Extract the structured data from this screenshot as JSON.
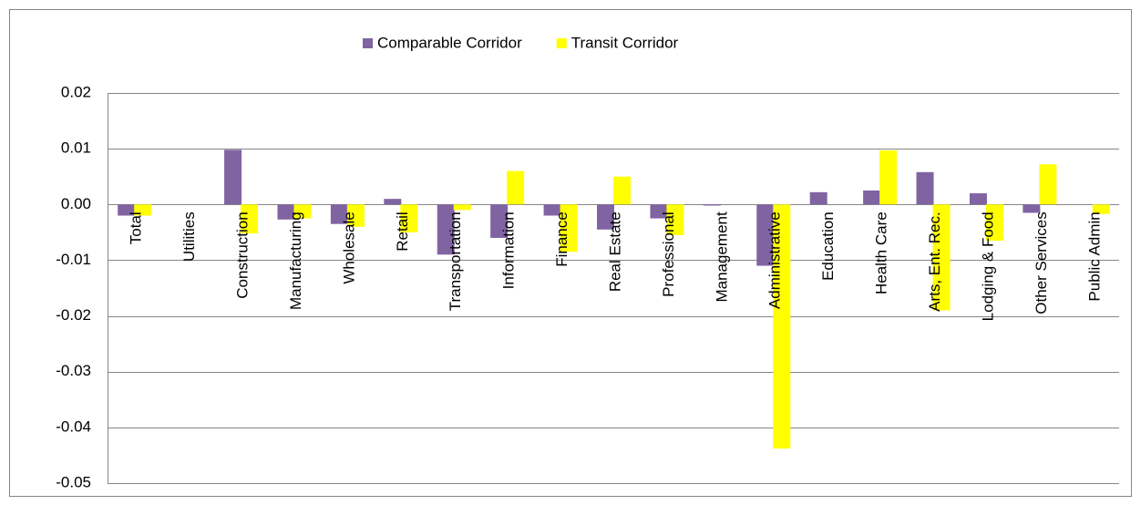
{
  "chart_data": {
    "type": "bar",
    "categories": [
      "Total",
      "Utilities",
      "Construction",
      "Manufacturing",
      "Wholesale",
      "Retail",
      "Transportation",
      "Information",
      "Finance",
      "Real Estate",
      "Professional",
      "Management",
      "Administrative",
      "Education",
      "Health Care",
      "Arts, Ent. Rec.",
      "Lodging & Food",
      "Other Services",
      "Public Admin"
    ],
    "series": [
      {
        "name": "Comparable Corridor",
        "color": "#8064a2",
        "values": [
          -0.002,
          0,
          0.0098,
          -0.0027,
          -0.0035,
          0.001,
          -0.009,
          -0.006,
          -0.002,
          -0.0045,
          -0.0025,
          -0.0002,
          -0.011,
          0.0022,
          0.0025,
          0.0058,
          0.002,
          -0.0015,
          0
        ]
      },
      {
        "name": "Transit Corridor",
        "color": "#ffff00",
        "values": [
          -0.002,
          0,
          -0.0052,
          -0.0025,
          -0.004,
          -0.005,
          -0.001,
          0.006,
          -0.0085,
          0.005,
          -0.0055,
          0,
          -0.0438,
          0,
          0.0097,
          -0.019,
          -0.0065,
          0.0072,
          -0.0017
        ]
      }
    ],
    "ylim": [
      -0.05,
      0.02
    ],
    "yticks": [
      0.02,
      0.01,
      {
        "value": 0,
        "label": "0.00"
      },
      -0.01,
      -0.02,
      -0.03,
      -0.04,
      -0.05
    ],
    "grid": true,
    "legend": "top"
  }
}
